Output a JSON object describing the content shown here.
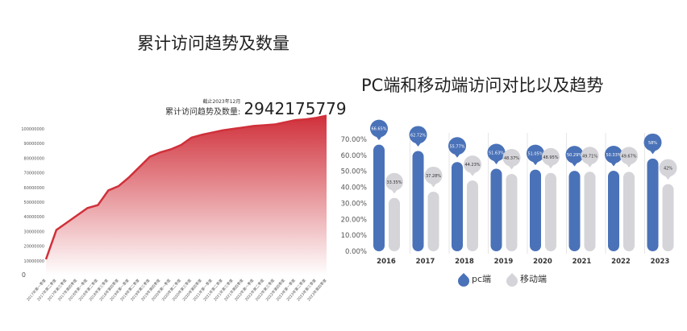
{
  "chart_data": [
    {
      "type": "area",
      "title": "累计访问趋势及数量",
      "annotation": {
        "date": "截止2023年12月",
        "label": "累计访问趋势及数量:",
        "value": "2942175779"
      },
      "yticks": [
        "0",
        "10000000",
        "20000000",
        "30000000",
        "40000000",
        "50000000",
        "60000000",
        "70000000",
        "80000000",
        "90000000",
        "100000000"
      ],
      "ylim": [
        0,
        110000000
      ],
      "categories": [
        "2017年第一季度",
        "2017年第二季度",
        "2017年第三季度",
        "2017年第四季度",
        "2018年第一季度",
        "2018年第二季度",
        "2018年第三季度",
        "2018年第四季度",
        "2019年第一季度",
        "2019年第二季度",
        "2019年第三季度",
        "2019年第四季度",
        "2020年第一季度",
        "2020年第二季度",
        "2020年第三季度",
        "2020年第四季度",
        "2021年第一季度",
        "2021年第二季度",
        "2021年第三季度",
        "2021年第四季度",
        "2022年第一季度",
        "2022年第二季度",
        "2022年第三季度",
        "2022年第四季度",
        "2023年第一季度",
        "2023年第二季度",
        "2023年第三季度",
        "2023年第四季度"
      ],
      "values": [
        11000000,
        31000000,
        36000000,
        41000000,
        46000000,
        48000000,
        58000000,
        61000000,
        67000000,
        74000000,
        81000000,
        84000000,
        86000000,
        89000000,
        94000000,
        96000000,
        97500000,
        99000000,
        100000000,
        101000000,
        102000000,
        102500000,
        103000000,
        104500000,
        106000000,
        106500000,
        107500000,
        109000000
      ],
      "color": "#d0303a"
    },
    {
      "type": "bar",
      "title": "PC端和移动端访问对比以及趋势",
      "categories": [
        "2016",
        "2017",
        "2018",
        "2019",
        "2020",
        "2021",
        "2022",
        "2023"
      ],
      "yticks": [
        "0.00%",
        "10.00%",
        "20.00%",
        "30.00%",
        "40.00%",
        "50.00%",
        "60.00%",
        "70.00%"
      ],
      "ylim": [
        0,
        70
      ],
      "series": [
        {
          "name": "pc端",
          "color": "#4a72b8",
          "values": [
            66.65,
            62.72,
            55.77,
            51.63,
            51.05,
            50.29,
            50.33,
            58
          ],
          "labels": [
            "66.65%",
            "62.72%",
            "55.77%",
            "51.63%",
            "51.05%",
            "50.29%",
            "50.33%",
            "58%"
          ]
        },
        {
          "name": "移动端",
          "color": "#d4d4d9",
          "values": [
            33.35,
            37.28,
            44.23,
            48.37,
            48.95,
            49.71,
            49.67,
            42
          ],
          "labels": [
            "33.35%",
            "37.28%",
            "44.23%",
            "48.37%",
            "48.95%",
            "49.71%",
            "49.67%",
            "42%"
          ]
        }
      ],
      "legend": "bottom"
    }
  ]
}
